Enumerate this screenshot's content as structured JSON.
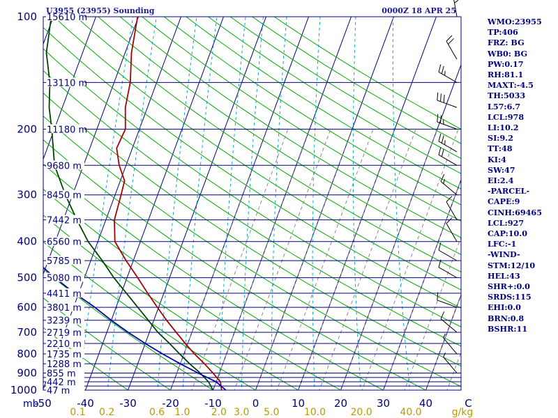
{
  "header": {
    "title": "U3955 (23955) Sounding",
    "valid_time": "0000Z 18 APR 25"
  },
  "indices": [
    "WMO:23955",
    "TP:406",
    "FRZ: BG",
    "WB0: BG",
    "PW:0.17",
    "RH:81.1",
    "MAXT:-4.5",
    "TH:5033",
    "L57:6.7",
    "LCL:978",
    "LI:10.2",
    "SI:9.2",
    "TT:48",
    "KI:4",
    "SW:47",
    "EI:2.4",
    "-PARCEL-",
    "CAPE:9",
    "CINH:69465",
    "LCL:927",
    "CAP:10.0",
    "LFC:-1",
    "-WIND-",
    "STM:12/10",
    "HEL:43",
    "SHR+:0.0",
    "SRDS:115",
    "EHI:0.0",
    "BRN:0.8",
    "BSHR:11"
  ],
  "chart_data": {
    "type": "line",
    "pressure_axis": {
      "scale": "log",
      "range": [
        1000,
        100
      ],
      "tick_labels": [
        "100",
        "200",
        "300",
        "400",
        "500",
        "600",
        "700",
        "800",
        "900",
        "1000"
      ],
      "unit_label": "mb"
    },
    "isobars": [
      1000,
      975,
      950,
      925,
      900,
      850,
      800,
      750,
      700,
      650,
      600,
      550,
      500,
      450,
      400,
      350,
      300,
      250,
      200,
      150,
      100
    ],
    "heights": [
      {
        "p": 100,
        "label": "15610 m"
      },
      {
        "p": 150,
        "label": "13110 m"
      },
      {
        "p": 200,
        "label": "11180 m"
      },
      {
        "p": 250,
        "label": "9680 m"
      },
      {
        "p": 300,
        "label": "8450 m"
      },
      {
        "p": 350,
        "label": "7442 m"
      },
      {
        "p": 400,
        "label": "6560 m"
      },
      {
        "p": 450,
        "label": "5785 m"
      },
      {
        "p": 500,
        "label": "5080 m"
      },
      {
        "p": 550,
        "label": "4411 m"
      },
      {
        "p": 600,
        "label": "3801 m"
      },
      {
        "p": 650,
        "label": "3239 m"
      },
      {
        "p": 700,
        "label": "2719 m"
      },
      {
        "p": 750,
        "label": "2210 m"
      },
      {
        "p": 800,
        "label": "1735 m"
      },
      {
        "p": 850,
        "label": "1288 m"
      },
      {
        "p": 900,
        "label": "855 m"
      },
      {
        "p": 950,
        "label": "442 m"
      },
      {
        "p": 1000,
        "label": "47 m"
      }
    ],
    "temperature_axis": {
      "unit": "°C",
      "range": [
        -50,
        50
      ],
      "tick_labels": [
        "-50",
        "-40",
        "-30",
        "-20",
        "-10",
        "0",
        "10",
        "20",
        "30",
        "40",
        "C"
      ]
    },
    "mixing_ratio_axis": {
      "unit_label": "g/kg",
      "labels": [
        "0.1",
        "0.2",
        "0.6",
        "1.0",
        "2.0",
        "3.0",
        "5.0",
        "10.0",
        "20.0",
        "40.0"
      ],
      "values": [
        0.1,
        0.2,
        0.6,
        1.0,
        2.0,
        3.0,
        5.0,
        10.0,
        20.0,
        40.0
      ]
    },
    "series": [
      {
        "color": "#aa0000",
        "points": [
          [
            1000,
            -8.0
          ],
          [
            950,
            -9.0
          ],
          [
            900,
            -11.5
          ],
          [
            850,
            -14.3
          ],
          [
            800,
            -17.5
          ],
          [
            750,
            -20.6
          ],
          [
            700,
            -23.7
          ],
          [
            650,
            -27.0
          ],
          [
            600,
            -30.3
          ],
          [
            550,
            -33.8
          ],
          [
            500,
            -37.5
          ],
          [
            450,
            -41.7
          ],
          [
            400,
            -46.0
          ],
          [
            350,
            -48.0
          ],
          [
            300,
            -48.6
          ],
          [
            275,
            -49.0
          ],
          [
            250,
            -51.6
          ],
          [
            225,
            -53.7
          ],
          [
            200,
            -53.3
          ],
          [
            175,
            -55.2
          ],
          [
            150,
            -56.2
          ],
          [
            125,
            -58.5
          ],
          [
            100,
            -60.2
          ]
        ]
      },
      {
        "color": "#004400",
        "points": [
          [
            1000,
            -10.0
          ],
          [
            950,
            -11.8
          ],
          [
            900,
            -14.5
          ],
          [
            850,
            -17.8
          ],
          [
            800,
            -21.0
          ],
          [
            750,
            -24.3
          ],
          [
            700,
            -28.0
          ],
          [
            650,
            -31.3
          ],
          [
            600,
            -34.9
          ],
          [
            550,
            -38.8
          ],
          [
            500,
            -43.1
          ],
          [
            450,
            -47.3
          ],
          [
            400,
            -52.3
          ],
          [
            350,
            -56.8
          ],
          [
            300,
            -61.7
          ],
          [
            250,
            -66.8
          ],
          [
            200,
            -70.6
          ],
          [
            175,
            -73.1
          ],
          [
            150,
            -75.1
          ],
          [
            125,
            -78.5
          ],
          [
            100,
            -80.5
          ]
        ]
      },
      {
        "color": "#0000aa",
        "points": [
          [
            1000,
            -7.0
          ],
          [
            950,
            -10.0
          ],
          [
            900,
            -15.0
          ],
          [
            850,
            -20.0
          ],
          [
            800,
            -25.0
          ],
          [
            750,
            -30.0
          ],
          [
            700,
            -35.0
          ],
          [
            650,
            -40.0
          ],
          [
            600,
            -45.0
          ],
          [
            550,
            -51.0
          ],
          [
            500,
            -57.0
          ],
          [
            450,
            -63.0
          ],
          [
            400,
            -70.0
          ],
          [
            350,
            -77.0
          ],
          [
            300,
            -84.0
          ],
          [
            250,
            -92.0
          ],
          [
            200,
            -101.0
          ],
          [
            150,
            -112.0
          ],
          [
            125,
            -118.0
          ]
        ]
      }
    ],
    "wind_barbs": [
      {
        "p": 100,
        "dir": 350,
        "spd": 25
      },
      {
        "p": 130,
        "dir": 330,
        "spd": 20
      },
      {
        "p": 150,
        "dir": 300,
        "spd": 25
      },
      {
        "p": 175,
        "dir": 290,
        "spd": 30
      },
      {
        "p": 200,
        "dir": 290,
        "spd": 25
      },
      {
        "p": 230,
        "dir": 300,
        "spd": 25
      },
      {
        "p": 250,
        "dir": 300,
        "spd": 20
      },
      {
        "p": 300,
        "dir": 310,
        "spd": 15
      },
      {
        "p": 350,
        "dir": 330,
        "spd": 10
      },
      {
        "p": 400,
        "dir": 330,
        "spd": 10
      },
      {
        "p": 450,
        "dir": 300,
        "spd": 10
      },
      {
        "p": 500,
        "dir": 300,
        "spd": 10
      },
      {
        "p": 600,
        "dir": 290,
        "spd": 10
      },
      {
        "p": 700,
        "dir": 310,
        "spd": 10
      },
      {
        "p": 800,
        "dir": 320,
        "spd": 5
      },
      {
        "p": 900,
        "dir": 320,
        "spd": 5
      }
    ],
    "grid": true,
    "colors": {
      "isobar": "#000080",
      "isotherm": "#000080",
      "dry_adiabat": "#00aa00",
      "moist_adiabat": "#888888",
      "mixing_ratio": "#00aacc",
      "frame": "#000080",
      "mixing_ratio_label": "#bb9900",
      "wind_barb": "#000000"
    }
  }
}
